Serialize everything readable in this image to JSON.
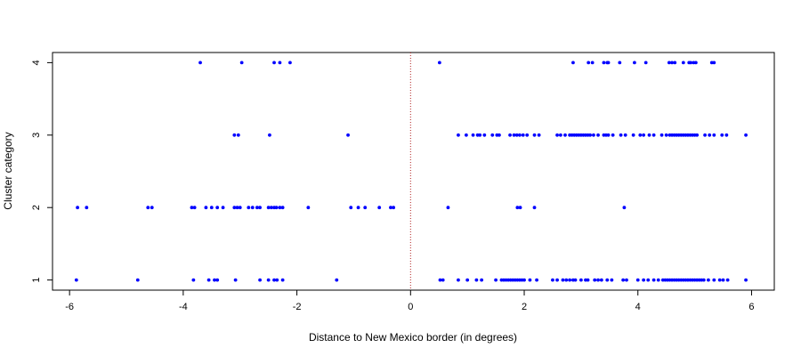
{
  "chart_data": {
    "type": "scatter",
    "title": "",
    "xlabel": "Distance to New Mexico border (in degrees)",
    "ylabel": "Cluster category",
    "xlim": [
      -6.3,
      6.4
    ],
    "ylim": [
      0.86,
      4.14
    ],
    "x_ticks": [
      -6,
      -4,
      -2,
      0,
      2,
      4,
      6
    ],
    "x_tick_labels": [
      "-6",
      "-4",
      "-2",
      "0",
      "2",
      "4",
      "6"
    ],
    "y_ticks": [
      1,
      2,
      3,
      4
    ],
    "y_tick_labels": [
      "1",
      "2",
      "3",
      "4"
    ],
    "grid": false,
    "reference_line": {
      "axis": "x",
      "value": 0,
      "style": "dotted",
      "color": "#b22222"
    },
    "point_color": "#0000ff",
    "series": [
      {
        "y": 4,
        "x": [
          -3.7,
          -2.97,
          -2.4,
          -2.3,
          -2.12,
          0.51,
          2.86,
          3.13,
          3.2,
          3.4,
          3.46,
          3.48,
          3.68,
          3.94,
          4.14,
          4.55,
          4.6,
          4.65,
          4.8,
          4.9,
          4.93,
          4.98,
          5.02,
          5.3,
          5.34
        ]
      },
      {
        "y": 3,
        "x": [
          -3.1,
          -3.03,
          -2.48,
          -1.1,
          0.84,
          0.98,
          1.1,
          1.18,
          1.22,
          1.3,
          1.44,
          1.52,
          1.56,
          1.75,
          1.82,
          1.87,
          1.92,
          1.98,
          2.05,
          2.18,
          2.26,
          2.58,
          2.64,
          2.72,
          2.8,
          2.84,
          2.88,
          2.92,
          2.96,
          3.0,
          3.04,
          3.08,
          3.12,
          3.16,
          3.22,
          3.3,
          3.4,
          3.44,
          3.48,
          3.56,
          3.7,
          3.78,
          3.92,
          4.04,
          4.1,
          4.2,
          4.28,
          4.42,
          4.5,
          4.56,
          4.6,
          4.64,
          4.68,
          4.72,
          4.76,
          4.8,
          4.84,
          4.88,
          4.92,
          4.96,
          5.0,
          5.04,
          5.18,
          5.26,
          5.34,
          5.48,
          5.56,
          5.9
        ]
      },
      {
        "y": 2,
        "x": [
          -5.86,
          -5.7,
          -4.62,
          -4.55,
          -3.85,
          -3.8,
          -3.6,
          -3.5,
          -3.4,
          -3.3,
          -3.1,
          -3.05,
          -3.0,
          -2.85,
          -2.78,
          -2.7,
          -2.65,
          -2.5,
          -2.45,
          -2.4,
          -2.36,
          -2.3,
          -2.25,
          -1.8,
          -1.05,
          -0.92,
          -0.8,
          -0.55,
          -0.35,
          -0.3,
          0.66,
          1.88,
          1.93,
          2.18,
          3.76
        ]
      },
      {
        "y": 1,
        "x": [
          -5.88,
          -4.8,
          -3.82,
          -3.55,
          -3.45,
          -3.4,
          -3.08,
          -2.65,
          -2.5,
          -2.4,
          -2.35,
          -2.25,
          -1.3,
          0.52,
          0.57,
          0.84,
          1.0,
          1.16,
          1.25,
          1.5,
          1.6,
          1.64,
          1.68,
          1.72,
          1.76,
          1.8,
          1.84,
          1.88,
          1.92,
          1.96,
          2.0,
          2.1,
          2.22,
          2.5,
          2.58,
          2.68,
          2.74,
          2.8,
          2.86,
          2.9,
          3.0,
          3.08,
          3.12,
          3.24,
          3.3,
          3.36,
          3.46,
          3.54,
          3.74,
          3.8,
          4.0,
          4.1,
          4.18,
          4.28,
          4.36,
          4.44,
          4.48,
          4.52,
          4.56,
          4.6,
          4.64,
          4.68,
          4.72,
          4.76,
          4.8,
          4.84,
          4.88,
          4.92,
          4.96,
          5.0,
          5.04,
          5.08,
          5.12,
          5.16,
          5.24,
          5.34,
          5.44,
          5.5,
          5.58,
          5.9
        ]
      }
    ]
  }
}
